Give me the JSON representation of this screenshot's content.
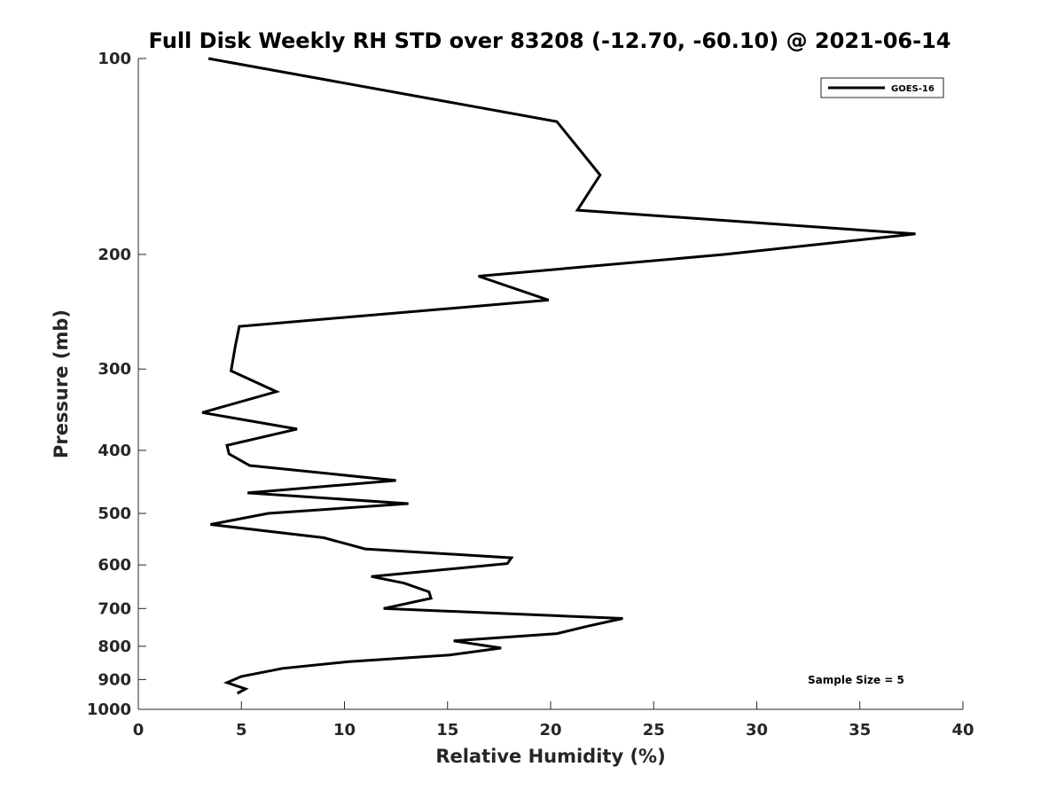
{
  "chart_data": {
    "type": "line",
    "title": "Full Disk Weekly RH STD over 83208 (-12.70, -60.10) @ 2021-06-14",
    "xlabel": "Relative Humidity (%)",
    "ylabel": "Pressure (mb)",
    "xlim": [
      0,
      40
    ],
    "ylim": [
      100,
      1000
    ],
    "y_scale": "log",
    "y_reversed": true,
    "x_ticks": [
      0,
      5,
      10,
      15,
      20,
      25,
      30,
      35,
      40
    ],
    "y_ticks": [
      100,
      200,
      300,
      400,
      500,
      600,
      700,
      800,
      900,
      1000
    ],
    "grid": false,
    "legend_position": "top-right",
    "annotation": "Sample Size = 5",
    "series": [
      {
        "name": "GOES-16",
        "color": "#000000",
        "points": [
          [
            3.4,
            100
          ],
          [
            20.3,
            125
          ],
          [
            22.4,
            151
          ],
          [
            21.3,
            171
          ],
          [
            37.7,
            186
          ],
          [
            28.4,
            200
          ],
          [
            16.5,
            216
          ],
          [
            19.9,
            235
          ],
          [
            4.9,
            258
          ],
          [
            4.7,
            277
          ],
          [
            4.5,
            302
          ],
          [
            6.7,
            325
          ],
          [
            3.1,
            350
          ],
          [
            7.7,
            371
          ],
          [
            4.3,
            393
          ],
          [
            4.4,
            405
          ],
          [
            5.4,
            422
          ],
          [
            12.5,
            445
          ],
          [
            5.3,
            465
          ],
          [
            13.1,
            483
          ],
          [
            6.3,
            500
          ],
          [
            3.5,
            520
          ],
          [
            9.0,
            545
          ],
          [
            11.0,
            567
          ],
          [
            18.1,
            585
          ],
          [
            17.9,
            597
          ],
          [
            11.3,
            625
          ],
          [
            12.9,
            640
          ],
          [
            14.1,
            660
          ],
          [
            14.2,
            675
          ],
          [
            11.9,
            700
          ],
          [
            23.5,
            725
          ],
          [
            21.8,
            745
          ],
          [
            20.3,
            765
          ],
          [
            15.3,
            785
          ],
          [
            17.6,
            805
          ],
          [
            15.1,
            825
          ],
          [
            10.2,
            845
          ],
          [
            7.0,
            865
          ],
          [
            5.0,
            890
          ],
          [
            4.3,
            910
          ],
          [
            5.2,
            930
          ],
          [
            4.8,
            945
          ]
        ]
      }
    ]
  }
}
